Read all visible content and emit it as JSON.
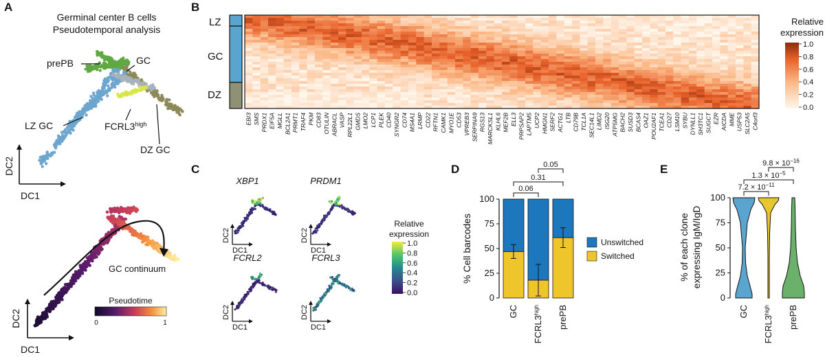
{
  "panel_labels": {
    "a": "A",
    "b": "B",
    "c": "C",
    "d": "D",
    "e": "E"
  },
  "panel_a": {
    "title_line1": "Germinal center B cells",
    "title_line2": "Pseudotemporal analysis",
    "xlabel": "DC1",
    "ylabel": "DC2",
    "clusters": {
      "prepb": "prePB",
      "gc": "GC",
      "lzgc": "LZ GC",
      "fcrl3_base": "FCRL3",
      "fcrl3_sup": "high",
      "dzgc": "DZ GC"
    },
    "continuum_label": "GC continuum",
    "pseudotime_title": "Pseudotime",
    "pseudotime_min": "0",
    "pseudotime_max": "1",
    "colors": {
      "prepb": "#5fa843",
      "gc": "#a7b2bd",
      "lzgc": "#6ca6cf",
      "fcrl3": "#d9e64a",
      "dzgc": "#8d8a5a"
    }
  },
  "heatmap": {
    "zones": [
      "LZ",
      "GC",
      "DZ"
    ],
    "zone_colors": {
      "LZ": "#5aa5cf",
      "GC": "#5aa5cf",
      "DZ": "#8e9173"
    },
    "genes": [
      "EBI3",
      "SMS",
      "PRDX1",
      "EIF5A",
      "MGLL",
      "BCL2A1",
      "PRMT1",
      "TRAF4",
      "PKM",
      "CD83",
      "OTULIN",
      "ABRACL",
      "VASP",
      "RPL22L1",
      "GMDS",
      "LMO2",
      "LCP1",
      "PLEK",
      "CD40",
      "SYNGR2",
      "CD74",
      "MS4A1",
      "LRMP",
      "CD22",
      "RFTN1",
      "CAMK1",
      "MYO1E",
      "CD53",
      "VPREB3",
      "SERPINA9",
      "RGS13",
      "MARCKSL1",
      "KLHL6",
      "MEF2B",
      "ELL3",
      "PRPSAP2",
      "LAPTM5",
      "UCP2",
      "HMGN1",
      "SERF2",
      "ACTG1",
      "LTB",
      "CD79B",
      "TCL1A",
      "SEC14L1",
      "LIMD2",
      "ISG20",
      "ATP5MG",
      "BACH2",
      "SUSD3",
      "BCAS4",
      "OAZ1",
      "POU2AF1",
      "TCEA1",
      "CD27",
      "LSM10",
      "SYBU",
      "DYNLL1",
      "SH3TC1",
      "SUGCT",
      "EZR",
      "AICDA",
      "MME",
      "USP53",
      "SLC2A5",
      "C4orf3"
    ],
    "legend_title_line1": "Relative",
    "legend_title_line2": "expression",
    "legend_ticks": [
      "1.0",
      "0.8",
      "0.6",
      "0.4",
      "0.2",
      "0.0"
    ]
  },
  "panel_c": {
    "genes": [
      "XBP1",
      "PRDM1",
      "FCRL2",
      "FCRL3"
    ],
    "xlabel": "DC1",
    "ylabel": "DC2",
    "legend_title_line1": "Relative",
    "legend_title_line2": "expression",
    "legend_ticks": [
      "1.0",
      "0.8",
      "0.6",
      "0.4",
      "0.2",
      "0.0"
    ]
  },
  "chart_data": [
    {
      "type": "bar",
      "id": "D",
      "stacked": true,
      "categories": [
        "GC",
        "FCRL3",
        "prePB"
      ],
      "category_superscript": [
        "",
        "high",
        ""
      ],
      "series": [
        {
          "name": "Switched",
          "values": [
            47,
            18,
            61
          ],
          "error": [
            7,
            16,
            10
          ],
          "color": "#efc52c"
        },
        {
          "name": "Unswitched",
          "values": [
            53,
            82,
            39
          ],
          "color": "#1d77bd"
        }
      ],
      "ylabel": "% Cell barcodes",
      "ylim": [
        0,
        100
      ],
      "yticks": [
        "0",
        "25",
        "50",
        "75",
        "100"
      ],
      "legend_position": "right",
      "legend": [
        "Unswitched",
        "Switched"
      ],
      "pvalues": [
        {
          "pair": "GC-FCRL3high",
          "text": "0.06"
        },
        {
          "pair": "GC-prePB",
          "text": "0.31"
        },
        {
          "pair": "FCRL3high-prePB",
          "text": "0.05"
        }
      ]
    },
    {
      "type": "violin",
      "id": "E",
      "categories": [
        "GC",
        "FCRL3",
        "prePB"
      ],
      "category_superscript": [
        "",
        "high",
        ""
      ],
      "colors": [
        "#5aa5cf",
        "#e8c62f",
        "#6bb06b"
      ],
      "ylabel_line1": "% of each clone",
      "ylabel_line2": "expressing IgM/IgD",
      "ylim": [
        0,
        100
      ],
      "yticks": [
        "0",
        "25",
        "50",
        "75",
        "100"
      ],
      "pvalues": [
        {
          "pair": "GC-FCRL3high",
          "text": "7.2 × 10",
          "exp": "−11"
        },
        {
          "pair": "GC-prePB",
          "text": "1.3 × 10",
          "exp": "−5"
        },
        {
          "pair": "FCRL3high-prePB",
          "text": "9.8 × 10",
          "exp": "−16"
        }
      ]
    }
  ]
}
